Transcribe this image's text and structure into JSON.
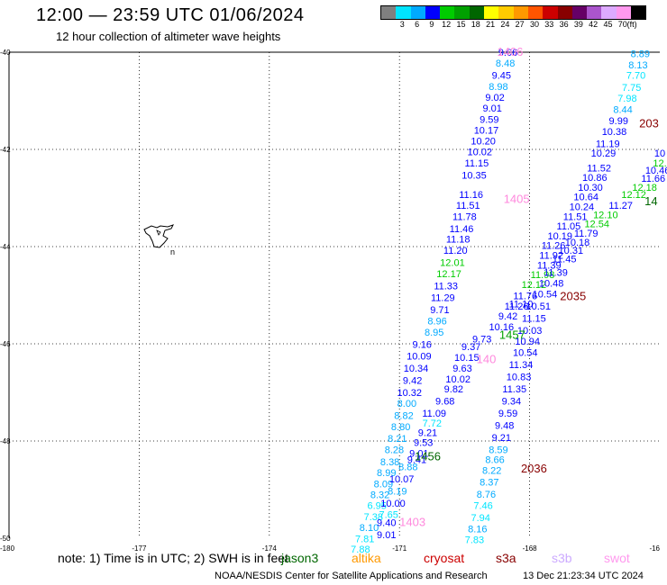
{
  "header": {
    "title": "12:00 — 23:59 UTC 01/06/2024",
    "subtitle": "12 hour collection of altimeter wave heights"
  },
  "colorbar": {
    "unit": "(ft)",
    "ticks": [
      "3",
      "6",
      "9",
      "12",
      "15",
      "18",
      "21",
      "24",
      "27",
      "30",
      "33",
      "36",
      "39",
      "42",
      "45",
      "70"
    ],
    "colors": [
      "#808080",
      "#00e5ff",
      "#00aaff",
      "#0000ff",
      "#00cc00",
      "#00a000",
      "#006600",
      "#ffff00",
      "#ffcc00",
      "#ff9900",
      "#ff5500",
      "#cc0000",
      "#880000",
      "#660066",
      "#aa55cc",
      "#ddaaff",
      "#ff99ee",
      "#000000"
    ]
  },
  "map": {
    "lon_ticks": [
      "-180",
      "-177",
      "-174",
      "-171",
      "-168",
      "-16"
    ],
    "lat_ticks": [
      "-40",
      "-42",
      "-44",
      "-46",
      "-48",
      "-50"
    ],
    "island_label": "n"
  },
  "chart_data": {
    "type": "scatter",
    "x_unit": "degrees longitude",
    "y_unit": "degrees latitude",
    "xlim": [
      -180,
      -165
    ],
    "ylim": [
      -50,
      -40
    ],
    "pass_labels": [
      {
        "text": "1406",
        "lon": -168.45,
        "lat": -40.07,
        "color": "#ff88dd"
      },
      {
        "text": "203",
        "lon": -165.25,
        "lat": -41.55,
        "color": "#880000"
      },
      {
        "text": "1405",
        "lon": -168.3,
        "lat": -43.1,
        "color": "#ff88dd"
      },
      {
        "text": "14",
        "lon": -165.2,
        "lat": -43.15,
        "color": "#006600"
      },
      {
        "text": "2035",
        "lon": -167.0,
        "lat": -45.1,
        "color": "#880000"
      },
      {
        "text": "1457",
        "lon": -168.4,
        "lat": -45.9,
        "color": "#00a000"
      },
      {
        "text": "140",
        "lon": -169.0,
        "lat": -46.4,
        "color": "#ff88dd"
      },
      {
        "text": "1456",
        "lon": -170.35,
        "lat": -48.4,
        "color": "#006600"
      },
      {
        "text": "2036",
        "lon": -167.9,
        "lat": -48.65,
        "color": "#880000"
      },
      {
        "text": "1403",
        "lon": -170.7,
        "lat": -49.75,
        "color": "#ff88dd"
      }
    ],
    "points": [
      {
        "v": "9.06",
        "lon": -168.5,
        "lat": -40.07,
        "c": "#0000ff"
      },
      {
        "v": "8.48",
        "lon": -168.56,
        "lat": -40.3,
        "c": "#00aaff"
      },
      {
        "v": "9.45",
        "lon": -168.65,
        "lat": -40.55,
        "c": "#0000ff"
      },
      {
        "v": "8.98",
        "lon": -168.72,
        "lat": -40.78,
        "c": "#00aaff"
      },
      {
        "v": "9.02",
        "lon": -168.8,
        "lat": -41.0,
        "c": "#0000ff"
      },
      {
        "v": "9.01",
        "lon": -168.86,
        "lat": -41.22,
        "c": "#0000ff"
      },
      {
        "v": "9.59",
        "lon": -168.93,
        "lat": -41.45,
        "c": "#0000ff"
      },
      {
        "v": "10.17",
        "lon": -169.0,
        "lat": -41.68,
        "c": "#0000ff"
      },
      {
        "v": "10.20",
        "lon": -169.07,
        "lat": -41.9,
        "c": "#0000ff"
      },
      {
        "v": "10.02",
        "lon": -169.15,
        "lat": -42.12,
        "c": "#0000ff"
      },
      {
        "v": "11.15",
        "lon": -169.22,
        "lat": -42.35,
        "c": "#0000ff"
      },
      {
        "v": "10.35",
        "lon": -169.28,
        "lat": -42.6,
        "c": "#0000ff"
      },
      {
        "v": "11.16",
        "lon": -169.35,
        "lat": -43.0,
        "c": "#0000ff"
      },
      {
        "v": "11.51",
        "lon": -169.42,
        "lat": -43.22,
        "c": "#0000ff"
      },
      {
        "v": "11.78",
        "lon": -169.5,
        "lat": -43.45,
        "c": "#0000ff"
      },
      {
        "v": "11.46",
        "lon": -169.57,
        "lat": -43.7,
        "c": "#0000ff"
      },
      {
        "v": "11.18",
        "lon": -169.65,
        "lat": -43.92,
        "c": "#0000ff"
      },
      {
        "v": "11.20",
        "lon": -169.71,
        "lat": -44.15,
        "c": "#0000ff"
      },
      {
        "v": "12.01",
        "lon": -169.78,
        "lat": -44.4,
        "c": "#00cc00"
      },
      {
        "v": "12.17",
        "lon": -169.86,
        "lat": -44.63,
        "c": "#00cc00"
      },
      {
        "v": "11.33",
        "lon": -169.93,
        "lat": -44.88,
        "c": "#0000ff"
      },
      {
        "v": "11.29",
        "lon": -170.0,
        "lat": -45.12,
        "c": "#0000ff"
      },
      {
        "v": "9.71",
        "lon": -170.07,
        "lat": -45.37,
        "c": "#0000ff"
      },
      {
        "v": "8.96",
        "lon": -170.13,
        "lat": -45.6,
        "c": "#00aaff"
      },
      {
        "v": "8.95",
        "lon": -170.2,
        "lat": -45.83,
        "c": "#00aaff"
      },
      {
        "v": "9.16",
        "lon": -170.48,
        "lat": -46.08,
        "c": "#0000ff"
      },
      {
        "v": "10.09",
        "lon": -170.55,
        "lat": -46.32,
        "c": "#0000ff"
      },
      {
        "v": "10.34",
        "lon": -170.62,
        "lat": -46.57,
        "c": "#0000ff"
      },
      {
        "v": "9.42",
        "lon": -170.7,
        "lat": -46.82,
        "c": "#0000ff"
      },
      {
        "v": "10.32",
        "lon": -170.77,
        "lat": -47.07,
        "c": "#0000ff"
      },
      {
        "v": "8.00",
        "lon": -170.83,
        "lat": -47.3,
        "c": "#00aaff"
      },
      {
        "v": "8.82",
        "lon": -170.9,
        "lat": -47.55,
        "c": "#00aaff"
      },
      {
        "v": "8.80",
        "lon": -170.97,
        "lat": -47.78,
        "c": "#00aaff"
      },
      {
        "v": "8.21",
        "lon": -171.05,
        "lat": -48.02,
        "c": "#00aaff"
      },
      {
        "v": "8.28",
        "lon": -171.12,
        "lat": -48.25,
        "c": "#00aaff"
      },
      {
        "v": "8.38",
        "lon": -171.22,
        "lat": -48.5,
        "c": "#00aaff"
      },
      {
        "v": "8.99",
        "lon": -171.3,
        "lat": -48.72,
        "c": "#00aaff"
      },
      {
        "v": "8.09",
        "lon": -171.37,
        "lat": -48.95,
        "c": "#00aaff"
      },
      {
        "v": "8.32",
        "lon": -171.45,
        "lat": -49.18,
        "c": "#00aaff"
      },
      {
        "v": "6.95",
        "lon": -171.52,
        "lat": -49.4,
        "c": "#00e5ff"
      },
      {
        "v": "7.38",
        "lon": -171.6,
        "lat": -49.63,
        "c": "#00e5ff"
      },
      {
        "v": "8.10",
        "lon": -171.7,
        "lat": -49.85,
        "c": "#00aaff"
      },
      {
        "v": "7.81",
        "lon": -171.8,
        "lat": -50.08,
        "c": "#00e5ff"
      },
      {
        "v": "7.88",
        "lon": -171.9,
        "lat": -50.3,
        "c": "#00e5ff"
      },
      {
        "v": "9.21",
        "lon": -170.35,
        "lat": -47.9,
        "c": "#0000ff"
      },
      {
        "v": "9.53",
        "lon": -170.45,
        "lat": -48.1,
        "c": "#0000ff"
      },
      {
        "v": "9.01",
        "lon": -170.55,
        "lat": -48.32,
        "c": "#0000ff"
      },
      {
        "v": "9.41",
        "lon": -170.6,
        "lat": -48.45,
        "c": "#0000ff"
      },
      {
        "v": "8.88",
        "lon": -170.8,
        "lat": -48.6,
        "c": "#00aaff"
      },
      {
        "v": "10.07",
        "lon": -170.95,
        "lat": -48.85,
        "c": "#0000ff"
      },
      {
        "v": "8.19",
        "lon": -171.05,
        "lat": -49.1,
        "c": "#00aaff"
      },
      {
        "v": "10.00",
        "lon": -171.15,
        "lat": -49.35,
        "c": "#0000ff"
      },
      {
        "v": "7.65",
        "lon": -171.25,
        "lat": -49.58,
        "c": "#00e5ff"
      },
      {
        "v": "9.40",
        "lon": -171.3,
        "lat": -49.75,
        "c": "#0000ff"
      },
      {
        "v": "9.01",
        "lon": -171.3,
        "lat": -50.0,
        "c": "#0000ff"
      },
      {
        "v": "11.09",
        "lon": -170.2,
        "lat": -47.5,
        "c": "#0000ff"
      },
      {
        "v": "7.72",
        "lon": -170.25,
        "lat": -47.7,
        "c": "#00e5ff"
      },
      {
        "v": "9.68",
        "lon": -169.95,
        "lat": -47.25,
        "c": "#0000ff"
      },
      {
        "v": "9.82",
        "lon": -169.75,
        "lat": -47.0,
        "c": "#0000ff"
      },
      {
        "v": "10.02",
        "lon": -169.65,
        "lat": -46.8,
        "c": "#0000ff"
      },
      {
        "v": "9.63",
        "lon": -169.55,
        "lat": -46.57,
        "c": "#0000ff"
      },
      {
        "v": "10.15",
        "lon": -169.45,
        "lat": -46.35,
        "c": "#0000ff"
      },
      {
        "v": "9.37",
        "lon": -169.35,
        "lat": -46.13,
        "c": "#0000ff"
      },
      {
        "v": "9.73",
        "lon": -169.1,
        "lat": -45.97,
        "c": "#0000ff"
      },
      {
        "v": "10.16",
        "lon": -168.65,
        "lat": -45.72,
        "c": "#0000ff"
      },
      {
        "v": "9.42",
        "lon": -168.5,
        "lat": -45.5,
        "c": "#0000ff"
      },
      {
        "v": "11.26",
        "lon": -168.3,
        "lat": -45.3,
        "c": "#0000ff"
      },
      {
        "v": "11.76",
        "lon": -168.1,
        "lat": -45.08,
        "c": "#0000ff"
      },
      {
        "v": "11.10",
        "lon": -168.2,
        "lat": -45.25,
        "c": "#0000ff"
      },
      {
        "v": "12.12",
        "lon": -167.9,
        "lat": -44.85,
        "c": "#00cc00"
      },
      {
        "v": "11.98",
        "lon": -167.7,
        "lat": -44.65,
        "c": "#00cc00"
      },
      {
        "v": "11.39",
        "lon": -167.55,
        "lat": -44.45,
        "c": "#0000ff"
      },
      {
        "v": "11.92",
        "lon": -167.5,
        "lat": -44.25,
        "c": "#0000ff"
      },
      {
        "v": "11.26",
        "lon": -167.45,
        "lat": -44.05,
        "c": "#0000ff"
      },
      {
        "v": "10.19",
        "lon": -167.3,
        "lat": -43.85,
        "c": "#0000ff"
      },
      {
        "v": "11.05",
        "lon": -167.1,
        "lat": -43.65,
        "c": "#0000ff"
      },
      {
        "v": "11.51",
        "lon": -166.95,
        "lat": -43.45,
        "c": "#0000ff"
      },
      {
        "v": "10.24",
        "lon": -166.8,
        "lat": -43.25,
        "c": "#0000ff"
      },
      {
        "v": "10.64",
        "lon": -166.7,
        "lat": -43.05,
        "c": "#0000ff"
      },
      {
        "v": "10.30",
        "lon": -166.6,
        "lat": -42.85,
        "c": "#0000ff"
      },
      {
        "v": "10.86",
        "lon": -166.5,
        "lat": -42.65,
        "c": "#0000ff"
      },
      {
        "v": "11.52",
        "lon": -166.4,
        "lat": -42.45,
        "c": "#0000ff"
      },
      {
        "v": "10.29",
        "lon": -166.3,
        "lat": -42.15,
        "c": "#0000ff"
      },
      {
        "v": "11.19",
        "lon": -166.2,
        "lat": -41.95,
        "c": "#0000ff"
      },
      {
        "v": "10.38",
        "lon": -166.05,
        "lat": -41.7,
        "c": "#0000ff"
      },
      {
        "v": "9.99",
        "lon": -165.95,
        "lat": -41.48,
        "c": "#0000ff"
      },
      {
        "v": "8.44",
        "lon": -165.85,
        "lat": -41.25,
        "c": "#00aaff"
      },
      {
        "v": "7.98",
        "lon": -165.75,
        "lat": -41.02,
        "c": "#00e5ff"
      },
      {
        "v": "7.75",
        "lon": -165.65,
        "lat": -40.8,
        "c": "#00e5ff"
      },
      {
        "v": "7.70",
        "lon": -165.55,
        "lat": -40.55,
        "c": "#00e5ff"
      },
      {
        "v": "8.13",
        "lon": -165.5,
        "lat": -40.33,
        "c": "#00aaff"
      },
      {
        "v": "8.89",
        "lon": -165.45,
        "lat": -40.1,
        "c": "#00aaff"
      },
      {
        "v": "10",
        "lon": -165.0,
        "lat": -42.15,
        "c": "#0000ff"
      },
      {
        "v": "12.",
        "lon": -165.0,
        "lat": -42.35,
        "c": "#00cc00"
      },
      {
        "v": "10.46",
        "lon": -165.05,
        "lat": -42.5,
        "c": "#0000ff"
      },
      {
        "v": "11.66",
        "lon": -165.15,
        "lat": -42.67,
        "c": "#0000ff"
      },
      {
        "v": "12.18",
        "lon": -165.35,
        "lat": -42.85,
        "c": "#00cc00"
      },
      {
        "v": "12.12",
        "lon": -165.6,
        "lat": -43.0,
        "c": "#00cc00"
      },
      {
        "v": "11.27",
        "lon": -165.9,
        "lat": -43.22,
        "c": "#0000ff"
      },
      {
        "v": "12.10",
        "lon": -166.25,
        "lat": -43.42,
        "c": "#00cc00"
      },
      {
        "v": "12.54",
        "lon": -166.45,
        "lat": -43.6,
        "c": "#00cc00"
      },
      {
        "v": "11.79",
        "lon": -166.7,
        "lat": -43.8,
        "c": "#0000ff"
      },
      {
        "v": "10.18",
        "lon": -166.9,
        "lat": -43.98,
        "c": "#0000ff"
      },
      {
        "v": "10.31",
        "lon": -167.05,
        "lat": -44.15,
        "c": "#0000ff"
      },
      {
        "v": "11.45",
        "lon": -167.2,
        "lat": -44.32,
        "c": "#0000ff"
      },
      {
        "v": "11.39",
        "lon": -167.4,
        "lat": -44.6,
        "c": "#0000ff"
      },
      {
        "v": "10.48",
        "lon": -167.5,
        "lat": -44.82,
        "c": "#0000ff"
      },
      {
        "v": "10.54",
        "lon": -167.65,
        "lat": -45.05,
        "c": "#0000ff"
      },
      {
        "v": "10.51",
        "lon": -167.8,
        "lat": -45.3,
        "c": "#0000ff"
      },
      {
        "v": "11.15",
        "lon": -167.9,
        "lat": -45.55,
        "c": "#0000ff"
      },
      {
        "v": "10.03",
        "lon": -168.0,
        "lat": -45.8,
        "c": "#0000ff"
      },
      {
        "v": "10.94",
        "lon": -168.05,
        "lat": -46.02,
        "c": "#0000ff"
      },
      {
        "v": "10.54",
        "lon": -168.1,
        "lat": -46.25,
        "c": "#0000ff"
      },
      {
        "v": "11.34",
        "lon": -168.2,
        "lat": -46.5,
        "c": "#0000ff"
      },
      {
        "v": "10.83",
        "lon": -168.25,
        "lat": -46.75,
        "c": "#0000ff"
      },
      {
        "v": "11.35",
        "lon": -168.35,
        "lat": -47.0,
        "c": "#0000ff"
      },
      {
        "v": "9.34",
        "lon": -168.42,
        "lat": -47.25,
        "c": "#0000ff"
      },
      {
        "v": "9.59",
        "lon": -168.5,
        "lat": -47.5,
        "c": "#0000ff"
      },
      {
        "v": "9.48",
        "lon": -168.58,
        "lat": -47.75,
        "c": "#0000ff"
      },
      {
        "v": "9.21",
        "lon": -168.65,
        "lat": -48.0,
        "c": "#0000ff"
      },
      {
        "v": "8.59",
        "lon": -168.72,
        "lat": -48.25,
        "c": "#00aaff"
      },
      {
        "v": "8.66",
        "lon": -168.8,
        "lat": -48.45,
        "c": "#00aaff"
      },
      {
        "v": "8.22",
        "lon": -168.87,
        "lat": -48.68,
        "c": "#00aaff"
      },
      {
        "v": "8.37",
        "lon": -168.93,
        "lat": -48.92,
        "c": "#00aaff"
      },
      {
        "v": "8.76",
        "lon": -169.0,
        "lat": -49.17,
        "c": "#00aaff"
      },
      {
        "v": "7.46",
        "lon": -169.07,
        "lat": -49.4,
        "c": "#00e5ff"
      },
      {
        "v": "7.94",
        "lon": -169.13,
        "lat": -49.65,
        "c": "#00e5ff"
      },
      {
        "v": "8.16",
        "lon": -169.2,
        "lat": -49.88,
        "c": "#00aaff"
      },
      {
        "v": "7.83",
        "lon": -169.27,
        "lat": -50.1,
        "c": "#00e5ff"
      }
    ]
  },
  "footer": {
    "note": "note:  1) Time is in UTC; 2) SWH is in feet",
    "satellites": [
      {
        "name": "jason3",
        "color": "#006600"
      },
      {
        "name": "altika",
        "color": "#ff9900"
      },
      {
        "name": "cryosat",
        "color": "#cc0000"
      },
      {
        "name": "s3a",
        "color": "#880000"
      },
      {
        "name": "s3b",
        "color": "#ccaaff"
      },
      {
        "name": "swot",
        "color": "#ff99ee"
      }
    ],
    "credit": "NOAA/NESDIS Center for Satellite Applications and Research",
    "timestamp": "13 Dec 21:23:34 UTC 2024"
  }
}
